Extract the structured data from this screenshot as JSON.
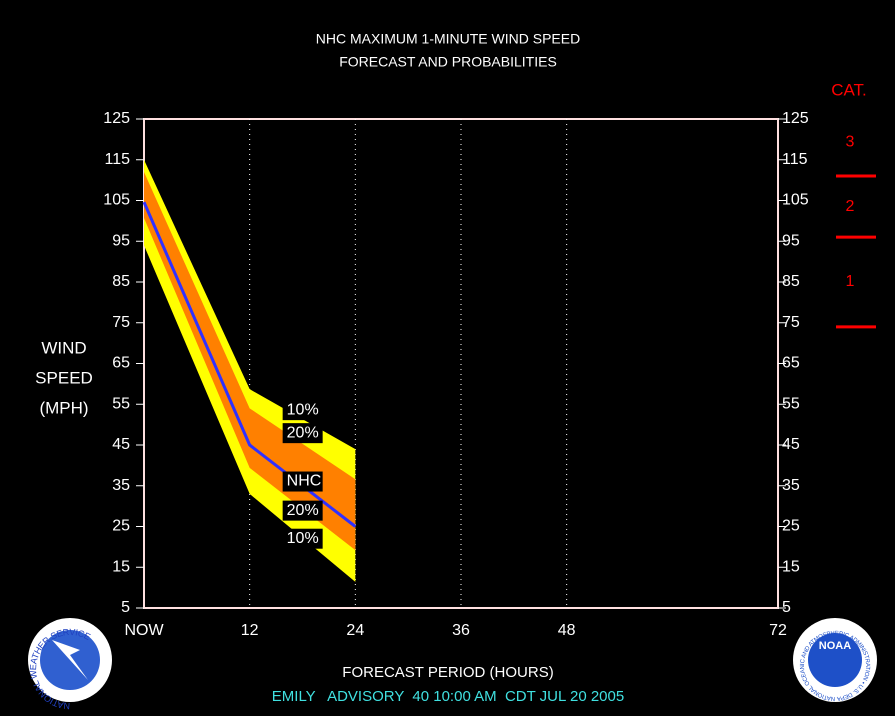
{
  "chart_data": {
    "type": "probability_band",
    "title": [
      "NHC MAXIMUM 1-MINUTE WIND SPEED",
      "FORECAST AND PROBABILITIES"
    ],
    "ylabel": [
      "WIND",
      "SPEED",
      "(MPH)"
    ],
    "xlabel": "FORECAST PERIOD (HOURS)",
    "footer": "EMILY   ADVISORY  40 10:00 AM  CDT JUL 20 2005",
    "x": [
      0,
      12,
      24
    ],
    "series": [
      {
        "name": "10%",
        "color": "#ffff00",
        "values": [
          115,
          58.7,
          44
        ]
      },
      {
        "name": "20%",
        "color": "#ff8000",
        "values": [
          112,
          54,
          36.6
        ]
      },
      {
        "name": "NHC",
        "color": "#3030ff",
        "values": [
          104.6,
          45,
          25
        ]
      },
      {
        "name": "20%",
        "color": "#ff8000",
        "values": [
          100.7,
          39.4,
          19.2
        ]
      },
      {
        "name": "10%",
        "color": "#ffff00",
        "values": [
          94,
          33,
          11.4
        ]
      }
    ],
    "xlim": [
      0,
      72
    ],
    "xticks": [
      {
        "value": 0,
        "label": "NOW"
      },
      12,
      24,
      36,
      48,
      72
    ],
    "xgrid": [
      12,
      24,
      36,
      48
    ],
    "ylim": [
      5,
      125
    ],
    "yticks": [
      125,
      115,
      105,
      95,
      85,
      75,
      65,
      55,
      45,
      35,
      25,
      15,
      5
    ],
    "cat_title": "CAT.",
    "cat_labels": [
      "3",
      "2",
      "1"
    ],
    "cat_thresholds": [
      111,
      96,
      74
    ],
    "logos": {
      "left": "NATIONAL WEATHER SERVICE",
      "right_center": "NOAA",
      "right_ring": "NATIONAL OCEANIC AND ATMOSPHERIC ADMINISTRATION • U.S. DEPARTMENT OF COMMERCE"
    }
  }
}
